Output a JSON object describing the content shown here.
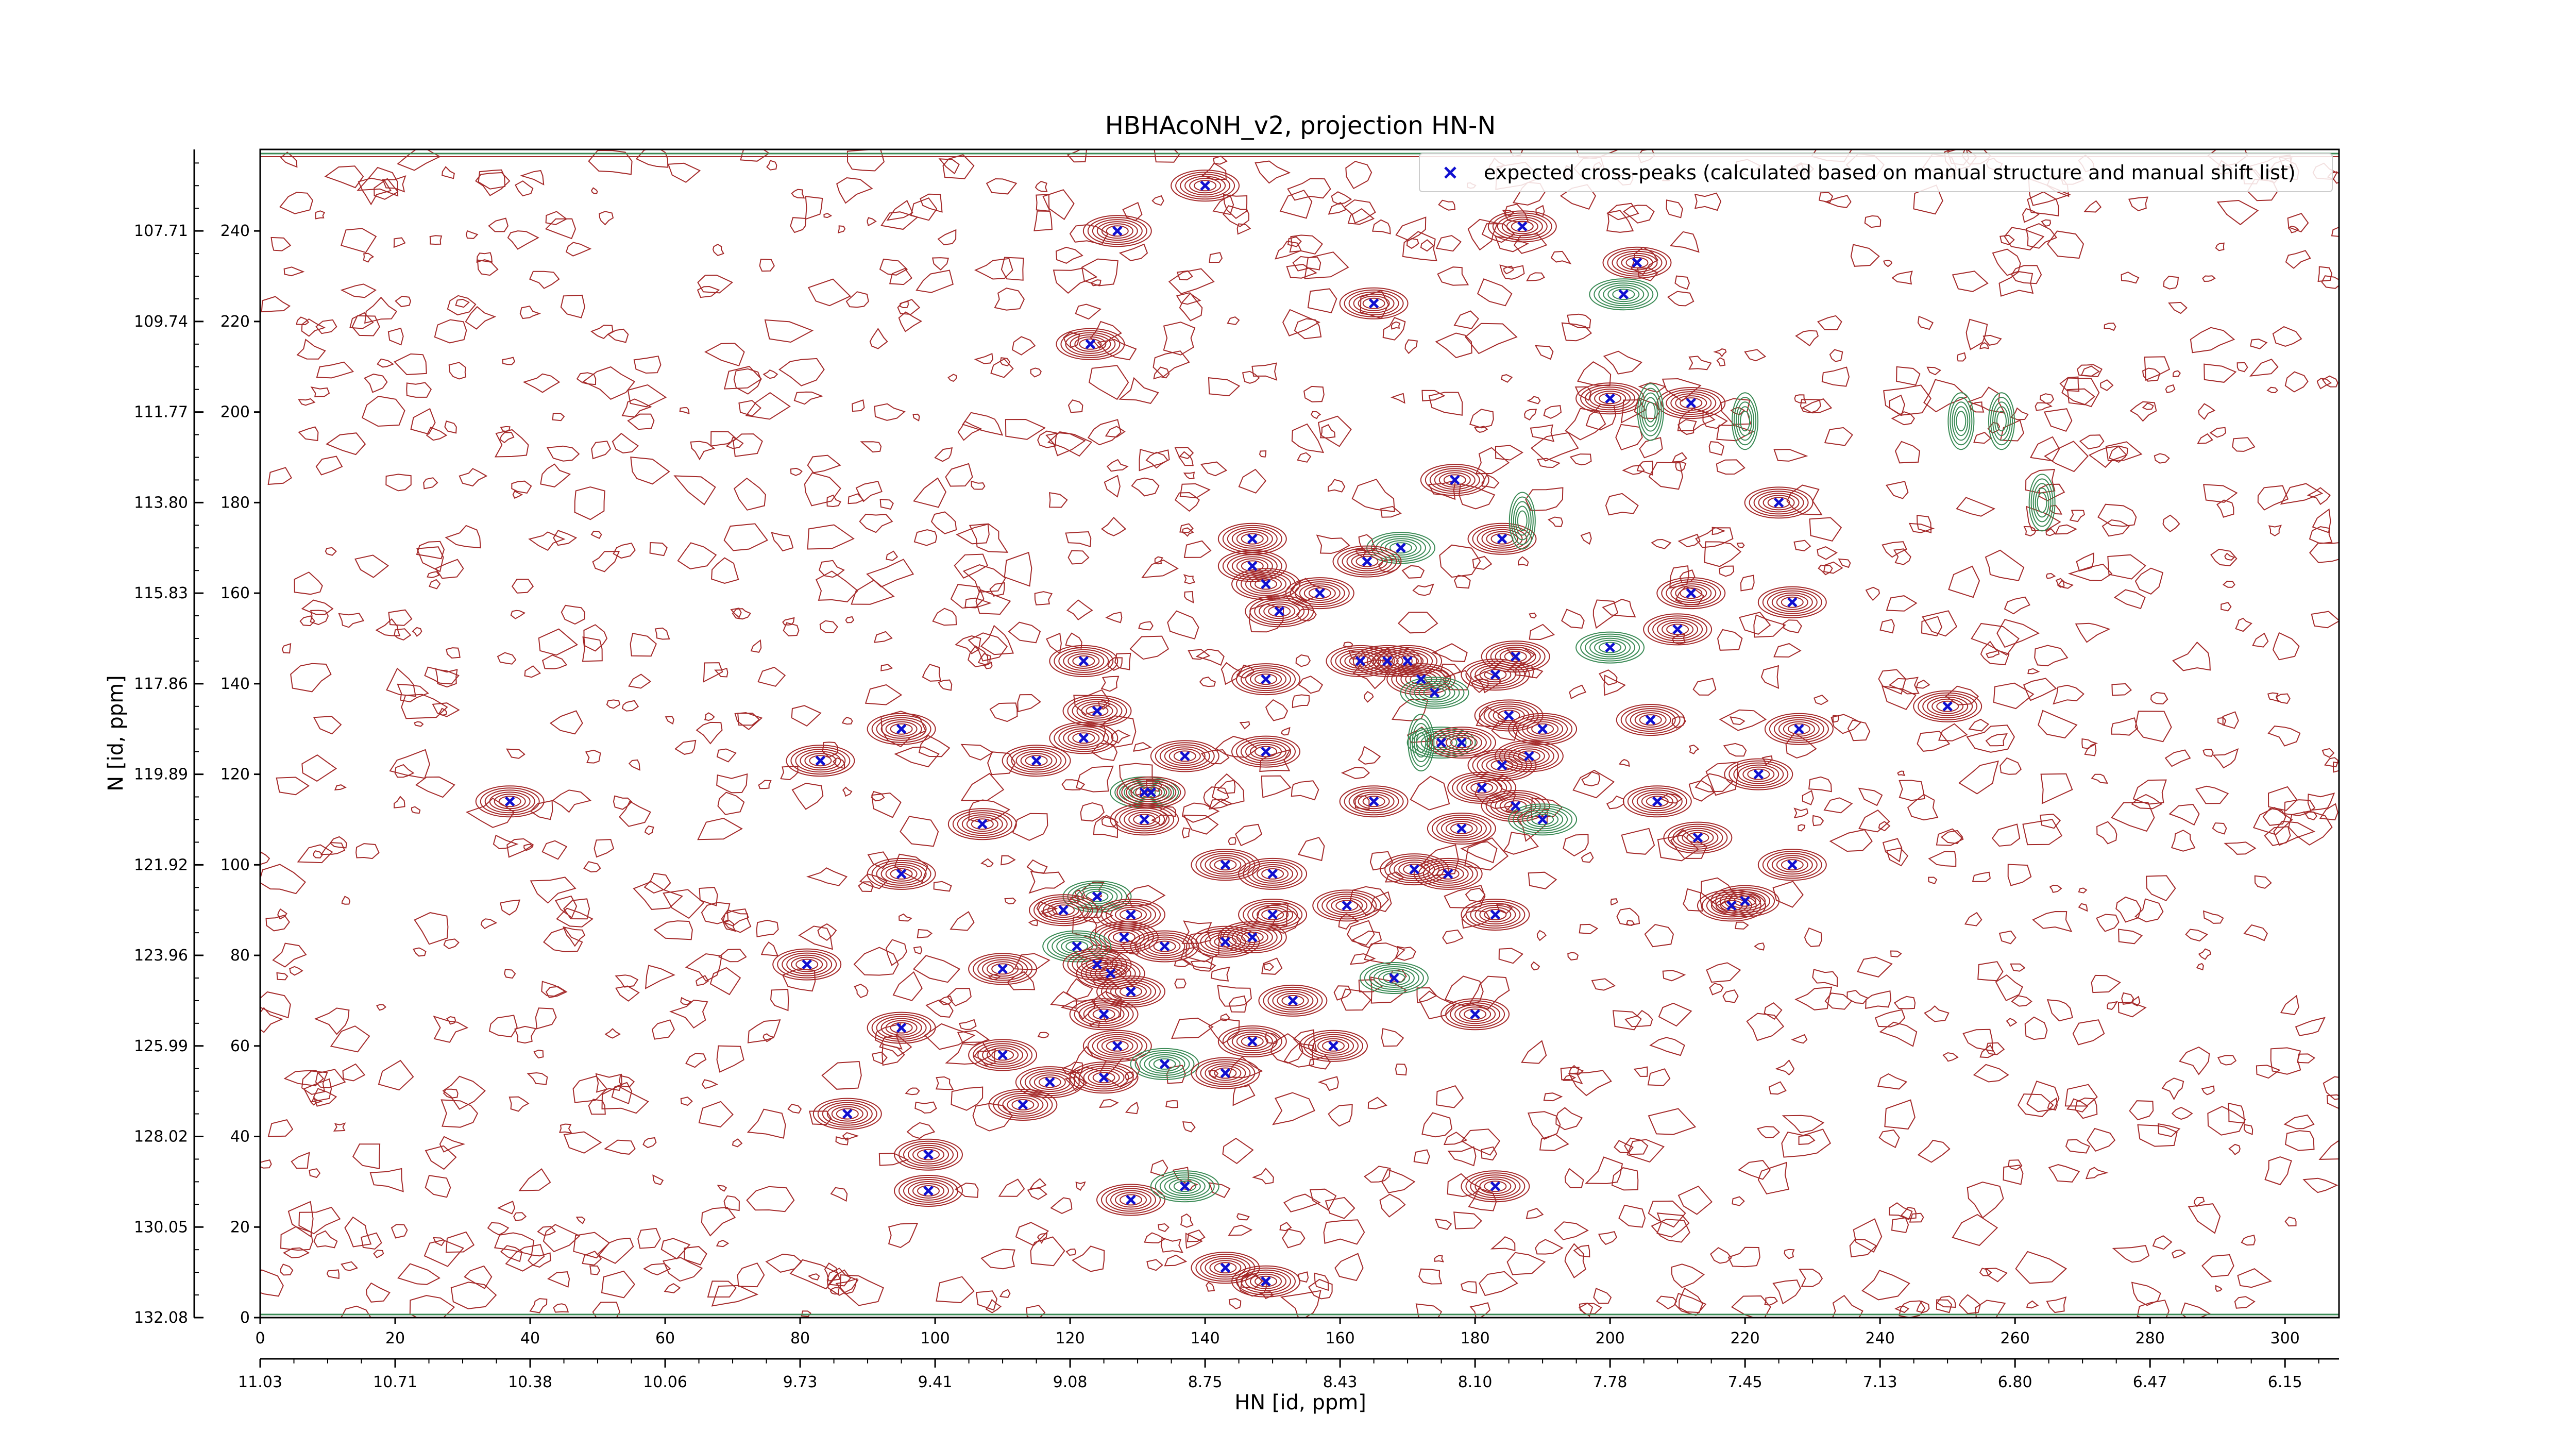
{
  "chart_data": {
    "type": "scatter",
    "title": "HBHAcoNH_v2, projection HN-N",
    "xlabel": "HN [id, ppm]",
    "ylabel": "N [id, ppm]",
    "xlim": [
      0,
      308
    ],
    "ylim": [
      0,
      258
    ],
    "grid": false,
    "legend_position": "top-right",
    "x_ticks_points": [
      0,
      20,
      40,
      60,
      80,
      100,
      120,
      140,
      160,
      180,
      200,
      220,
      240,
      260,
      280,
      300
    ],
    "x_ticks_ppm": [
      "11.03",
      "10.71",
      "10.38",
      "10.06",
      "9.73",
      "9.41",
      "9.08",
      "8.75",
      "8.43",
      "8.10",
      "7.78",
      "7.45",
      "7.13",
      "6.80",
      "6.47",
      "6.15"
    ],
    "y_ticks_points": [
      0,
      20,
      40,
      60,
      80,
      100,
      120,
      140,
      160,
      180,
      200,
      220,
      240
    ],
    "y_ticks_ppm": [
      "132.08",
      "130.05",
      "128.02",
      "125.99",
      "123.96",
      "121.92",
      "119.89",
      "117.86",
      "115.83",
      "113.80",
      "111.77",
      "109.74",
      "107.71"
    ],
    "colors": {
      "positive_contour": "#a52a2a",
      "negative_contour": "#3a8a55",
      "marker": "#1010d0"
    },
    "series": [
      {
        "name": "expected cross-peaks (calculated based on manual structure and manual shift list)",
        "marker": "x",
        "points": [
          {
            "x": 140,
            "y": 250
          },
          {
            "x": 127,
            "y": 240
          },
          {
            "x": 187,
            "y": 241
          },
          {
            "x": 204,
            "y": 233
          },
          {
            "x": 202,
            "y": 226
          },
          {
            "x": 165,
            "y": 224
          },
          {
            "x": 123,
            "y": 215
          },
          {
            "x": 200,
            "y": 203
          },
          {
            "x": 212,
            "y": 202
          },
          {
            "x": 177,
            "y": 185
          },
          {
            "x": 225,
            "y": 180
          },
          {
            "x": 147,
            "y": 172
          },
          {
            "x": 184,
            "y": 172
          },
          {
            "x": 169,
            "y": 170
          },
          {
            "x": 147,
            "y": 166
          },
          {
            "x": 164,
            "y": 167
          },
          {
            "x": 149,
            "y": 162
          },
          {
            "x": 157,
            "y": 160
          },
          {
            "x": 212,
            "y": 160
          },
          {
            "x": 227,
            "y": 158
          },
          {
            "x": 151,
            "y": 156
          },
          {
            "x": 210,
            "y": 152
          },
          {
            "x": 200,
            "y": 148
          },
          {
            "x": 163,
            "y": 145
          },
          {
            "x": 167,
            "y": 145
          },
          {
            "x": 170,
            "y": 145
          },
          {
            "x": 122,
            "y": 145
          },
          {
            "x": 186,
            "y": 146
          },
          {
            "x": 183,
            "y": 142
          },
          {
            "x": 149,
            "y": 141
          },
          {
            "x": 172,
            "y": 141
          },
          {
            "x": 174,
            "y": 138
          },
          {
            "x": 185,
            "y": 133
          },
          {
            "x": 124,
            "y": 134
          },
          {
            "x": 250,
            "y": 135
          },
          {
            "x": 206,
            "y": 132
          },
          {
            "x": 95,
            "y": 130
          },
          {
            "x": 190,
            "y": 130
          },
          {
            "x": 122,
            "y": 128
          },
          {
            "x": 228,
            "y": 130
          },
          {
            "x": 175,
            "y": 127
          },
          {
            "x": 178,
            "y": 127
          },
          {
            "x": 149,
            "y": 125
          },
          {
            "x": 137,
            "y": 124
          },
          {
            "x": 188,
            "y": 124
          },
          {
            "x": 83,
            "y": 123
          },
          {
            "x": 115,
            "y": 123
          },
          {
            "x": 184,
            "y": 122
          },
          {
            "x": 37,
            "y": 114
          },
          {
            "x": 131,
            "y": 116
          },
          {
            "x": 132,
            "y": 116
          },
          {
            "x": 165,
            "y": 114
          },
          {
            "x": 181,
            "y": 117
          },
          {
            "x": 186,
            "y": 113
          },
          {
            "x": 222,
            "y": 120
          },
          {
            "x": 207,
            "y": 114
          },
          {
            "x": 131,
            "y": 110
          },
          {
            "x": 107,
            "y": 109
          },
          {
            "x": 190,
            "y": 110
          },
          {
            "x": 178,
            "y": 108
          },
          {
            "x": 213,
            "y": 106
          },
          {
            "x": 143,
            "y": 100
          },
          {
            "x": 150,
            "y": 98
          },
          {
            "x": 171,
            "y": 99
          },
          {
            "x": 176,
            "y": 98
          },
          {
            "x": 95,
            "y": 98
          },
          {
            "x": 227,
            "y": 100
          },
          {
            "x": 124,
            "y": 93
          },
          {
            "x": 119,
            "y": 90
          },
          {
            "x": 129,
            "y": 89
          },
          {
            "x": 150,
            "y": 89
          },
          {
            "x": 161,
            "y": 91
          },
          {
            "x": 183,
            "y": 89
          },
          {
            "x": 220,
            "y": 92
          },
          {
            "x": 218,
            "y": 91
          },
          {
            "x": 128,
            "y": 84
          },
          {
            "x": 121,
            "y": 82
          },
          {
            "x": 134,
            "y": 82
          },
          {
            "x": 143,
            "y": 83
          },
          {
            "x": 147,
            "y": 84
          },
          {
            "x": 124,
            "y": 78
          },
          {
            "x": 81,
            "y": 78
          },
          {
            "x": 110,
            "y": 77
          },
          {
            "x": 126,
            "y": 76
          },
          {
            "x": 129,
            "y": 72
          },
          {
            "x": 168,
            "y": 75
          },
          {
            "x": 153,
            "y": 70
          },
          {
            "x": 125,
            "y": 67
          },
          {
            "x": 95,
            "y": 64
          },
          {
            "x": 180,
            "y": 67
          },
          {
            "x": 147,
            "y": 61
          },
          {
            "x": 127,
            "y": 60
          },
          {
            "x": 159,
            "y": 60
          },
          {
            "x": 110,
            "y": 58
          },
          {
            "x": 134,
            "y": 56
          },
          {
            "x": 143,
            "y": 54
          },
          {
            "x": 117,
            "y": 52
          },
          {
            "x": 125,
            "y": 53
          },
          {
            "x": 113,
            "y": 47
          },
          {
            "x": 87,
            "y": 45
          },
          {
            "x": 99,
            "y": 36
          },
          {
            "x": 99,
            "y": 28
          },
          {
            "x": 129,
            "y": 26
          },
          {
            "x": 137,
            "y": 29
          },
          {
            "x": 183,
            "y": 29
          },
          {
            "x": 143,
            "y": 11
          },
          {
            "x": 149,
            "y": 8
          }
        ]
      }
    ]
  }
}
